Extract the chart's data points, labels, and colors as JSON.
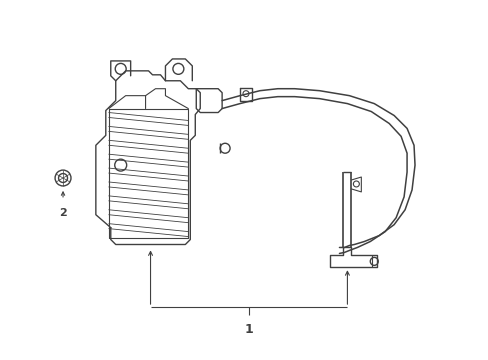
{
  "background_color": "#ffffff",
  "line_color": "#404040",
  "label1": "1",
  "label2": "2",
  "figsize": [
    4.89,
    3.6
  ],
  "dpi": 100
}
